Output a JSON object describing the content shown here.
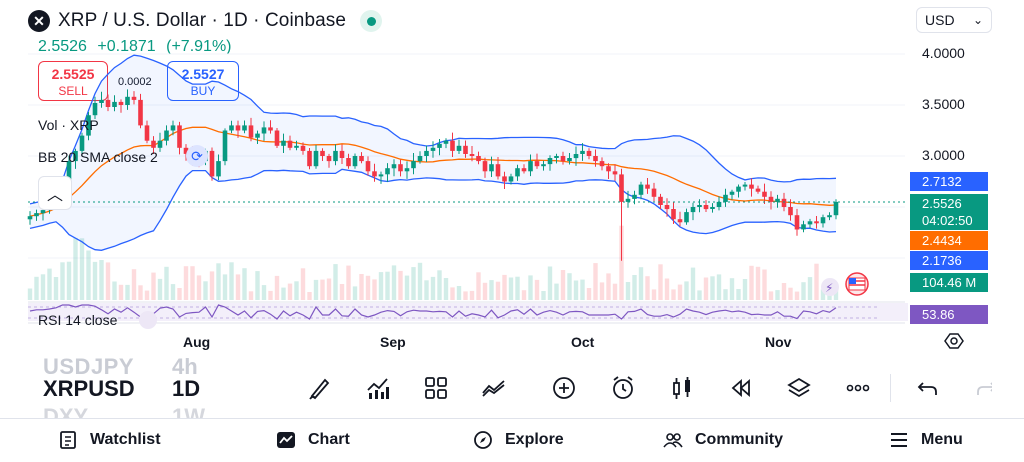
{
  "header": {
    "title": "XRP / U.S. Dollar · 1D · Coinbase",
    "last": "2.5526",
    "change": "+0.1871",
    "change_pct": "(+7.91%)",
    "currency": "USD"
  },
  "trade": {
    "sell_price": "2.5525",
    "sell_label": "SELL",
    "buy_price": "2.5527",
    "buy_label": "BUY",
    "spread": "0.0002"
  },
  "legends": {
    "volume": "Vol · XRP",
    "bb": "BB 20 SMA close 2",
    "rsi": "RSI 14 close"
  },
  "price_axis": [
    "4.0000",
    "3.5000",
    "3.0000"
  ],
  "tags": {
    "bb_upper": "2.7132",
    "last_price": "2.5526",
    "countdown": "04:02:50",
    "bb_basis": "2.4434",
    "bb_lower": "2.1736",
    "volume": "104.46 M",
    "rsi": "53.86"
  },
  "time_axis": [
    "Aug",
    "Sep",
    "Oct",
    "Nov"
  ],
  "symbols": {
    "prev_symbol": "USDJPY",
    "prev_tf": "4h",
    "current_symbol": "XRPUSD",
    "current_tf": "1D",
    "next_symbol": "DXY",
    "next_tf": "1W"
  },
  "colors": {
    "up": "#089981",
    "down": "#f23645",
    "bb_band": "#2962ff",
    "bb_basis": "#ff6d00",
    "rsi": "#7e57c2"
  },
  "toolbar_icons": [
    "brush-icon",
    "indicators-icon",
    "templates-icon",
    "compare-icon",
    "add-icon",
    "alert-icon",
    "bar-style-icon",
    "replay-icon",
    "layers-icon",
    "more-icon",
    "undo-icon",
    "redo-icon"
  ],
  "nav": {
    "watchlist": "Watchlist",
    "chart": "Chart",
    "explore": "Explore",
    "community": "Community",
    "menu": "Menu"
  },
  "chart_data": {
    "type": "candlestick",
    "x_ticks": [
      "Aug",
      "Sep",
      "Oct",
      "Nov"
    ],
    "y_ticks": [
      "4.0000",
      "3.5000",
      "3.0000"
    ],
    "ylim": [
      1.95,
      4.2
    ],
    "close": [
      2.41,
      2.44,
      2.47,
      2.52,
      2.6,
      2.75,
      2.95,
      3.05,
      3.2,
      3.4,
      3.52,
      3.55,
      3.48,
      3.53,
      3.5,
      3.58,
      3.55,
      3.3,
      3.15,
      3.08,
      3.15,
      3.25,
      3.3,
      3.08,
      3.02,
      2.98,
      2.95,
      3.05,
      2.8,
      2.95,
      3.25,
      3.3,
      3.25,
      3.3,
      3.18,
      3.22,
      3.28,
      3.25,
      3.1,
      3.15,
      3.08,
      3.1,
      3.05,
      2.9,
      3.05,
      3.0,
      2.95,
      3.05,
      2.98,
      2.9,
      3.0,
      2.95,
      2.85,
      2.8,
      2.82,
      2.88,
      2.92,
      2.85,
      2.88,
      2.95,
      3.0,
      3.05,
      3.08,
      3.12,
      3.15,
      3.05,
      3.1,
      3.02,
      3.0,
      2.95,
      2.85,
      2.92,
      2.8,
      2.75,
      2.8,
      2.88,
      2.85,
      2.95,
      2.9,
      2.92,
      2.98,
      3.0,
      2.95,
      2.98,
      3.02,
      3.05,
      3.0,
      2.95,
      2.9,
      2.85,
      2.82,
      2.55,
      2.58,
      2.62,
      2.72,
      2.68,
      2.6,
      2.52,
      2.48,
      2.38,
      2.35,
      2.45,
      2.5,
      2.52,
      2.48,
      2.5,
      2.55,
      2.62,
      2.65,
      2.7,
      2.72,
      2.68,
      2.65,
      2.6,
      2.55,
      2.58,
      2.5,
      2.42,
      2.28,
      2.33,
      2.36,
      2.34,
      2.4,
      2.42,
      2.55
    ]
  }
}
